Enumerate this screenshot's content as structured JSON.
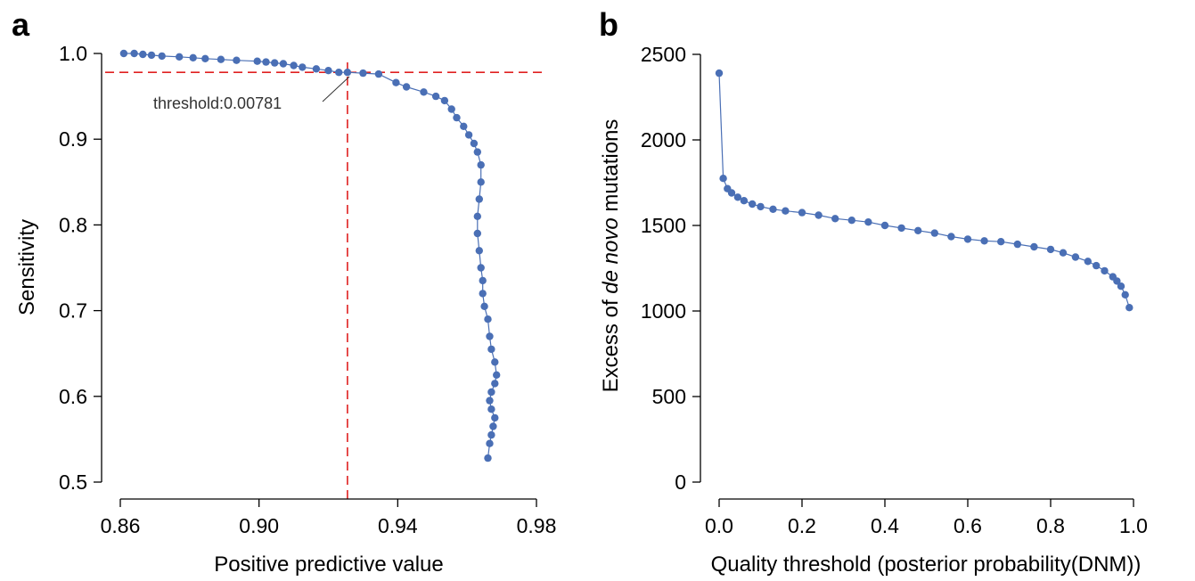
{
  "chart_data": [
    {
      "type": "line",
      "panel_letter": "a",
      "title": "",
      "xlabel": "Positive predictive value",
      "ylabel": "Sensitivity",
      "xlim": [
        0.86,
        0.98
      ],
      "ylim": [
        0.5,
        1.0
      ],
      "x_ticks": [
        "0.86",
        "0.90",
        "0.94",
        "0.98"
      ],
      "y_ticks": [
        "0.5",
        "0.6",
        "0.7",
        "0.8",
        "0.9",
        "1.0"
      ],
      "grid": false,
      "markers": true,
      "series_color": "#4a6fb5",
      "reference_color": "#e02020",
      "reference_lines": {
        "x": 0.9255,
        "y": 0.978
      },
      "annotation": {
        "text": "threshold:0.00781",
        "x": 0.9255,
        "y": 0.978
      },
      "series": [
        {
          "x": [
            0.861,
            0.864,
            0.8665,
            0.869,
            0.872,
            0.877,
            0.881,
            0.8845,
            0.889,
            0.8935,
            0.8995,
            0.902,
            0.9045,
            0.907,
            0.91,
            0.9125,
            0.9165,
            0.92,
            0.923,
            0.9255,
            0.93,
            0.9345,
            0.9395,
            0.9425,
            0.9475,
            0.951,
            0.9535,
            0.9555,
            0.957,
            0.959,
            0.9605,
            0.962,
            0.963,
            0.964,
            0.964,
            0.9635,
            0.963,
            0.963,
            0.9635,
            0.964,
            0.9645,
            0.9645,
            0.965,
            0.966,
            0.9665,
            0.967,
            0.968,
            0.9685,
            0.968,
            0.967,
            0.9665,
            0.967,
            0.968,
            0.9675,
            0.967,
            0.9665,
            0.966
          ],
          "y": [
            1.0,
            1.0,
            0.999,
            0.998,
            0.997,
            0.996,
            0.995,
            0.994,
            0.993,
            0.992,
            0.991,
            0.99,
            0.989,
            0.988,
            0.986,
            0.984,
            0.982,
            0.98,
            0.978,
            0.978,
            0.977,
            0.976,
            0.966,
            0.961,
            0.955,
            0.95,
            0.945,
            0.935,
            0.925,
            0.915,
            0.905,
            0.895,
            0.885,
            0.87,
            0.85,
            0.83,
            0.81,
            0.79,
            0.77,
            0.75,
            0.735,
            0.72,
            0.705,
            0.69,
            0.67,
            0.655,
            0.64,
            0.625,
            0.615,
            0.605,
            0.595,
            0.585,
            0.575,
            0.565,
            0.555,
            0.545,
            0.528
          ]
        }
      ]
    },
    {
      "type": "line",
      "panel_letter": "b",
      "title": "",
      "xlabel_parts": [
        "Quality threshold (posterior probability(DNM))"
      ],
      "ylabel_parts": [
        "Excess of ",
        "de novo",
        " mutations"
      ],
      "xlim": [
        0.0,
        1.0
      ],
      "ylim": [
        0,
        2500
      ],
      "x_ticks": [
        "0.0",
        "0.2",
        "0.4",
        "0.6",
        "0.8",
        "1.0"
      ],
      "y_ticks": [
        "0",
        "500",
        "1000",
        "1500",
        "2000",
        "2500"
      ],
      "grid": false,
      "markers": true,
      "series_color": "#4a6fb5",
      "series": [
        {
          "x": [
            0.0,
            0.01,
            0.02,
            0.03,
            0.045,
            0.06,
            0.08,
            0.1,
            0.13,
            0.16,
            0.2,
            0.24,
            0.28,
            0.32,
            0.36,
            0.4,
            0.44,
            0.48,
            0.52,
            0.56,
            0.6,
            0.64,
            0.68,
            0.72,
            0.76,
            0.8,
            0.83,
            0.86,
            0.89,
            0.91,
            0.93,
            0.95,
            0.96,
            0.97,
            0.98,
            0.99
          ],
          "y": [
            2390,
            1775,
            1715,
            1690,
            1665,
            1645,
            1625,
            1610,
            1595,
            1585,
            1575,
            1560,
            1540,
            1530,
            1520,
            1500,
            1485,
            1470,
            1455,
            1435,
            1420,
            1410,
            1405,
            1390,
            1375,
            1360,
            1340,
            1315,
            1290,
            1265,
            1235,
            1200,
            1175,
            1145,
            1095,
            1020
          ]
        }
      ]
    }
  ]
}
